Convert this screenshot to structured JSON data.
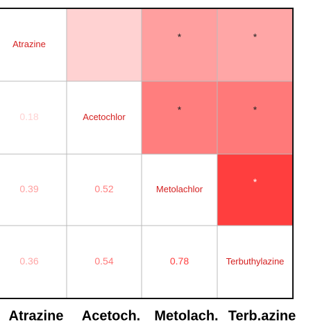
{
  "chart_data": {
    "type": "correlogram",
    "variables": [
      "Atrazine",
      "Acetochlor",
      "Metolachlor",
      "Terbuthylazine"
    ],
    "axis_labels": [
      "Atrazine",
      "Acetoch.",
      "Metolach.",
      "Terb.azine"
    ],
    "values": [
      [
        null,
        null,
        null,
        null
      ],
      [
        0.18,
        null,
        null,
        null
      ],
      [
        0.39,
        0.52,
        null,
        null
      ],
      [
        0.36,
        0.54,
        0.78,
        null
      ]
    ],
    "annotations": [
      [
        null,
        null,
        "*",
        "*"
      ],
      [
        null,
        null,
        "*",
        "*"
      ],
      [
        null,
        null,
        null,
        "*"
      ],
      [
        null,
        null,
        null,
        null
      ]
    ],
    "color": "#ff2828"
  }
}
